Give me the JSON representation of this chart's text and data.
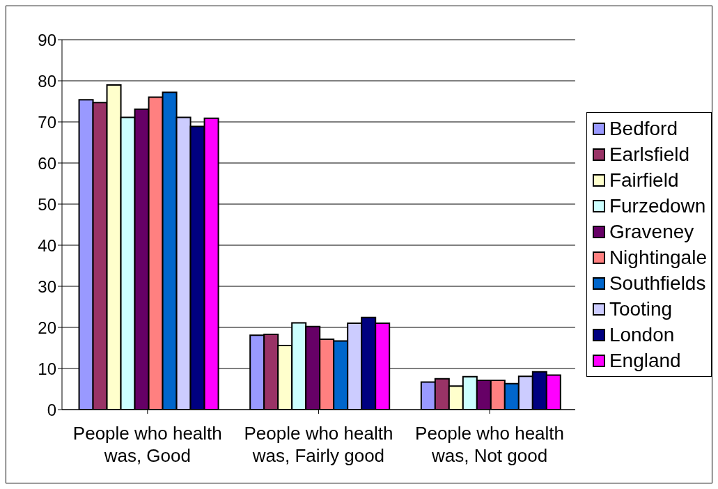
{
  "chart_data": {
    "type": "bar",
    "categories": [
      "People who health was, Good",
      "People who health was, Fairly good",
      "People who health was, Not good"
    ],
    "series": [
      {
        "name": "Bedford",
        "color": "#9999ff",
        "values": [
          75.4,
          18.1,
          6.7
        ]
      },
      {
        "name": "Earlsfield",
        "color": "#993366",
        "values": [
          74.7,
          18.3,
          7.5
        ]
      },
      {
        "name": "Fairfield",
        "color": "#ffffcc",
        "values": [
          79.0,
          15.6,
          5.7
        ]
      },
      {
        "name": "Furzedown",
        "color": "#ccffff",
        "values": [
          71.1,
          21.1,
          8.0
        ]
      },
      {
        "name": "Graveney",
        "color": "#660066",
        "values": [
          73.1,
          20.2,
          7.1
        ]
      },
      {
        "name": "Nightingale",
        "color": "#ff8080",
        "values": [
          76.0,
          17.1,
          7.1
        ]
      },
      {
        "name": "Southfields",
        "color": "#0066cc",
        "values": [
          77.2,
          16.7,
          6.3
        ]
      },
      {
        "name": "Tooting",
        "color": "#ccccff",
        "values": [
          71.1,
          21.0,
          8.1
        ]
      },
      {
        "name": "London",
        "color": "#000080",
        "values": [
          68.9,
          22.4,
          9.2
        ]
      },
      {
        "name": "England",
        "color": "#ff00ff",
        "values": [
          70.9,
          21.0,
          8.4
        ]
      }
    ],
    "ylim": [
      0,
      90
    ],
    "yticks": [
      0,
      10,
      20,
      30,
      40,
      50,
      60,
      70,
      80,
      90
    ],
    "grid": "y",
    "legend": "right"
  }
}
